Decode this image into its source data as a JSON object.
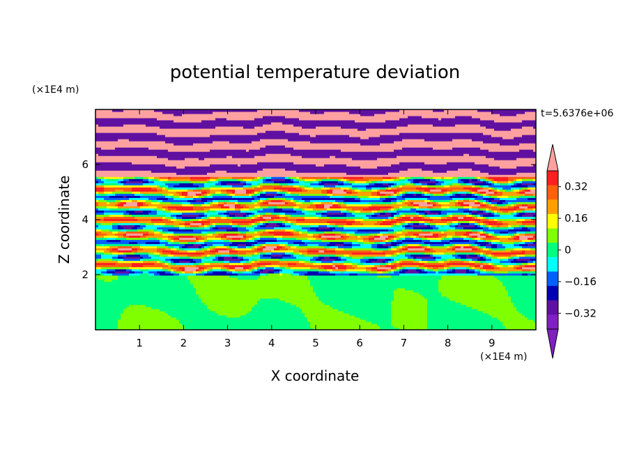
{
  "chart_data": {
    "type": "heatmap",
    "title": "potential temperature deviation",
    "xlabel": "X coordinate",
    "ylabel": "Z coordinate",
    "x_unit": "(×1E4 m)",
    "y_unit": "(×1E4 m)",
    "time_label": "t=5.6376e+06",
    "xlim": [
      0,
      10
    ],
    "ylim": [
      0,
      8
    ],
    "x_ticks": [
      "1",
      "2",
      "3",
      "4",
      "5",
      "6",
      "7",
      "8",
      "9"
    ],
    "y_ticks": [
      "2",
      "4",
      "6"
    ],
    "colorbar": {
      "tick_labels": [
        "0.32",
        "0.16",
        "0",
        "−0.16",
        "−0.32"
      ],
      "tick_values": [
        0.32,
        0.16,
        0,
        -0.16,
        -0.32
      ],
      "levels": [
        -0.4,
        -0.32,
        -0.24,
        -0.16,
        -0.08,
        0,
        0.08,
        0.16,
        0.24,
        0.32,
        0.4
      ],
      "colors": [
        "#ffa0a0",
        "#ff2020",
        "#ff6010",
        "#ffa000",
        "#ffff00",
        "#80ff00",
        "#00ff80",
        "#00ffff",
        "#0060ff",
        "#0000b0",
        "#6010a0",
        "#8020c0"
      ],
      "over_color": "#ffa0a0",
      "under_color": "#8020c0"
    },
    "regions": {
      "lower_layer_z": [
        0,
        2
      ],
      "lower_layer_colors": [
        "#80ff00",
        "#00ff80"
      ],
      "upper_band_z": [
        6,
        8
      ],
      "upper_band_colors": [
        "#ffa0a0",
        "#6010a0"
      ]
    }
  }
}
